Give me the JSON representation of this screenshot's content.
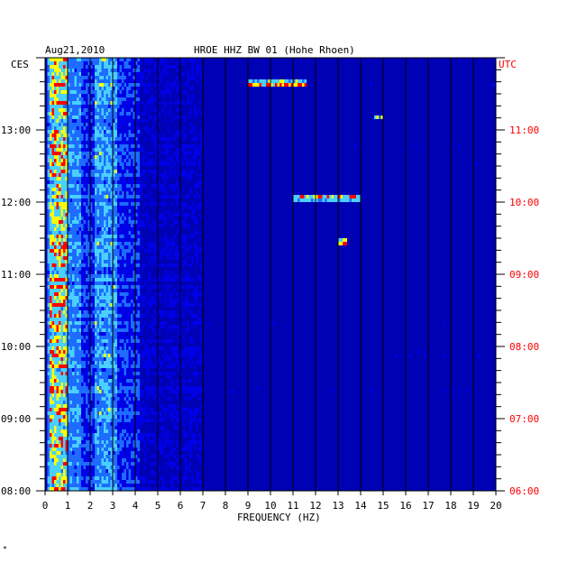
{
  "chart_data": {
    "type": "heatmap",
    "date": "Aug21,2010",
    "title": "HROE HHZ BW 01 (Hohe Rhoen)",
    "xlabel": "FREQUENCY (HZ)",
    "left_axis_label": "CES",
    "right_axis_label": "UTC",
    "xlim": [
      0,
      20
    ],
    "x_ticks": [
      "0",
      "1",
      "2",
      "3",
      "4",
      "5",
      "6",
      "7",
      "8",
      "9",
      "10",
      "11",
      "12",
      "13",
      "14",
      "15",
      "16",
      "17",
      "18",
      "19",
      "20"
    ],
    "left_ticks": [
      {
        "label": "13:00",
        "hour": 13
      },
      {
        "label": "12:00",
        "hour": 12
      },
      {
        "label": "11:00",
        "hour": 11
      },
      {
        "label": "10:00",
        "hour": 10
      },
      {
        "label": "09:00",
        "hour": 9
      },
      {
        "label": "08:00",
        "hour": 8
      }
    ],
    "right_ticks": [
      {
        "label": "11:00",
        "hour": 13
      },
      {
        "label": "10:00",
        "hour": 12
      },
      {
        "label": "09:00",
        "hour": 11
      },
      {
        "label": "08:00",
        "hour": 10
      },
      {
        "label": "07:00",
        "hour": 9
      },
      {
        "label": "06:00",
        "hour": 8
      }
    ],
    "time_range_hours_local": [
      8.0,
      14.0
    ],
    "colors": {
      "background": "#0000b4",
      "low": "#0000e6",
      "mid": "#1e6cff",
      "high": "#4ad0ff",
      "peak_yellow": "#ffff00",
      "peak_red": "#ff0000",
      "grid": "#000000",
      "utc_text": "#ff0000"
    },
    "features": {
      "energetic_band_hz": [
        0.2,
        1.0
      ],
      "secondary_band_hz": [
        2.2,
        3.2
      ],
      "notable_events": [
        {
          "hour": 12.06,
          "freq": [
            11.0,
            14.0
          ]
        },
        {
          "hour": 13.17,
          "freq": [
            14.6,
            15.0
          ]
        },
        {
          "hour": 11.45,
          "freq": [
            13.0,
            13.4
          ]
        },
        {
          "hour": 13.65,
          "freq": [
            9.0,
            11.6
          ]
        }
      ]
    },
    "corner_mark": "*"
  }
}
